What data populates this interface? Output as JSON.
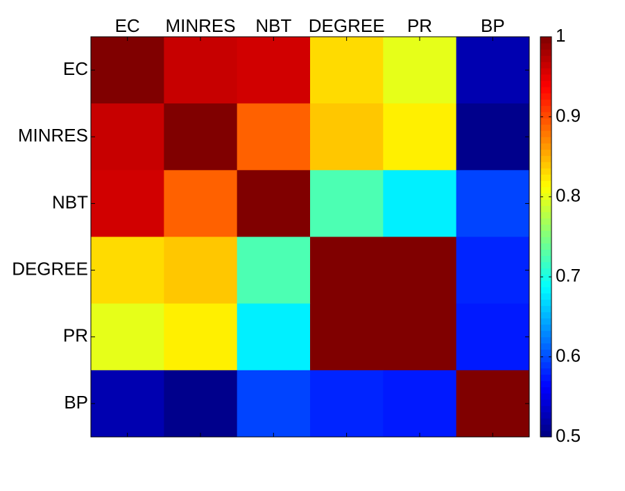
{
  "chart_data": {
    "type": "heatmap",
    "x_categories": [
      "EC",
      "MINRES",
      "NBT",
      "DEGREE",
      "PR",
      "BP"
    ],
    "y_categories": [
      "EC",
      "MINRES",
      "NBT",
      "DEGREE",
      "PR",
      "BP"
    ],
    "values": [
      [
        1,
        0.965,
        0.96,
        0.83,
        0.8,
        0.524
      ],
      [
        0.965,
        1,
        0.89,
        0.84,
        0.82,
        0.506
      ],
      [
        0.96,
        0.89,
        1,
        0.725,
        0.68,
        0.596
      ],
      [
        0.83,
        0.84,
        0.725,
        1,
        1,
        0.58
      ],
      [
        0.8,
        0.82,
        0.68,
        1,
        1,
        0.575
      ],
      [
        0.524,
        0.506,
        0.596,
        0.58,
        0.575,
        1
      ]
    ],
    "colormap": "jet",
    "zlim": [
      0.5,
      1
    ],
    "zticks": [
      0.5,
      0.6,
      0.7,
      0.8,
      0.9,
      1
    ]
  }
}
